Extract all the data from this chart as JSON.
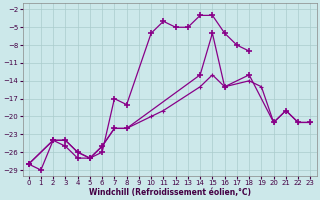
{
  "xlabel": "Windchill (Refroidissement éolien,°C)",
  "bg_color": "#cce8ea",
  "grid_color": "#aacccc",
  "line_color": "#880088",
  "xlim": [
    -0.5,
    23.5
  ],
  "ylim": [
    -30,
    -1
  ],
  "xticks": [
    0,
    1,
    2,
    3,
    4,
    5,
    6,
    7,
    8,
    9,
    10,
    11,
    12,
    13,
    14,
    15,
    16,
    17,
    18,
    19,
    20,
    21,
    22,
    23
  ],
  "yticks": [
    -29,
    -26,
    -23,
    -20,
    -17,
    -14,
    -11,
    -8,
    -5,
    -2
  ],
  "series1_x": [
    0,
    1,
    2,
    3,
    4,
    5,
    6,
    7,
    8,
    10,
    11,
    12,
    13,
    14,
    15,
    16,
    17,
    18
  ],
  "series1_y": [
    -28,
    -29,
    -24,
    -24,
    -26,
    -27,
    -26,
    -17,
    -18,
    -6,
    -4,
    -5,
    -5,
    -3,
    -3,
    -6,
    -8,
    -9
  ],
  "series2_x": [
    0,
    2,
    3,
    4,
    5,
    6,
    7,
    8,
    14,
    15,
    16,
    18,
    20,
    21,
    22,
    23
  ],
  "series2_y": [
    -28,
    -24,
    -25,
    -27,
    -27,
    -25,
    -22,
    -22,
    -13,
    -6,
    -15,
    -13,
    -21,
    -19,
    -21,
    -21
  ],
  "series3_x": [
    0,
    2,
    3,
    4,
    5,
    6,
    7,
    8,
    10,
    11,
    14,
    15,
    16,
    18,
    19,
    20,
    21,
    22,
    23
  ],
  "series3_y": [
    -28,
    -24,
    -24,
    -26,
    -27,
    -25,
    -22,
    -22,
    -20,
    -19,
    -15,
    -13,
    -15,
    -14,
    -15,
    -21,
    -19,
    -21,
    -21
  ]
}
